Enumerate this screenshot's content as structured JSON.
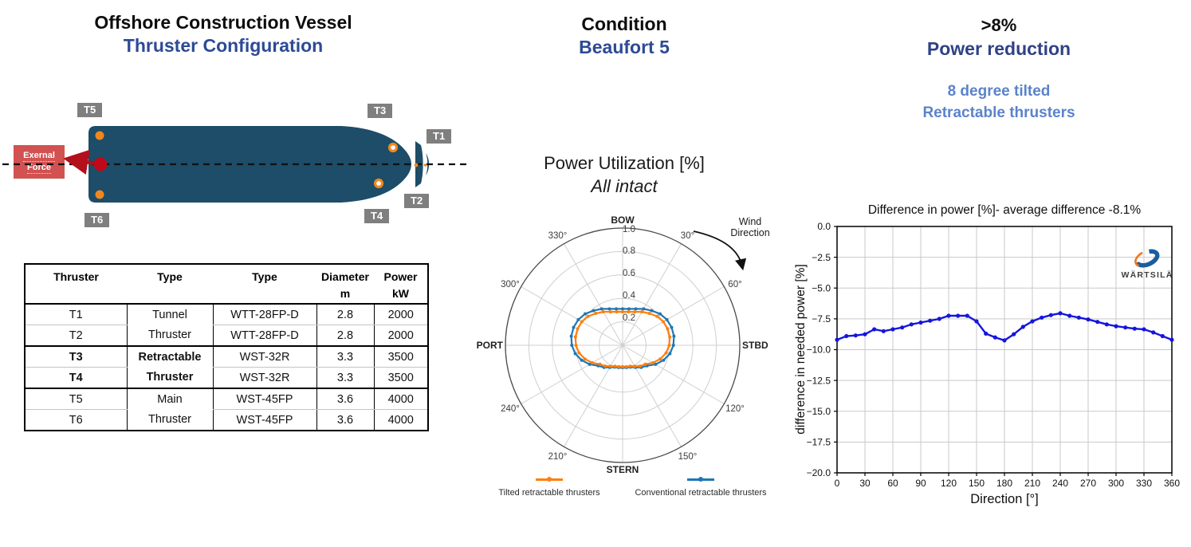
{
  "left": {
    "title_line1": "Offshore Construction Vessel",
    "title_line2": "Thruster Configuration",
    "diagram": {
      "external_force_line1": "Exernal",
      "external_force_line2": "Force",
      "thruster_labels": {
        "t1": "T1",
        "t2": "T2",
        "t3": "T3",
        "t4": "T4",
        "t5": "T5",
        "t6": "T6"
      },
      "hull_color": "#1d4d68",
      "label_bg": "#7f7f7f",
      "force_box_color": "#d25151",
      "arrow_color": "#b40f1c",
      "thruster_dot_color": "#f2871e"
    },
    "table": {
      "headers": [
        {
          "line1": "Thruster",
          "line2": ""
        },
        {
          "line1": "Type",
          "line2": ""
        },
        {
          "line1": "Type",
          "line2": ""
        },
        {
          "line1": "Diameter",
          "line2": "m"
        },
        {
          "line1": "Power",
          "line2": "kW"
        }
      ],
      "groups": [
        {
          "type_line1": "Tunnel",
          "type_line2": "Thruster",
          "rows": [
            {
              "id": "T1",
              "model": "WTT-28FP-D",
              "diameter": "2.8",
              "power": "2000"
            },
            {
              "id": "T2",
              "model": "WTT-28FP-D",
              "diameter": "2.8",
              "power": "2000"
            }
          ]
        },
        {
          "type_line1": "Retractable",
          "type_line2": "Thruster",
          "rows": [
            {
              "id": "T3",
              "model": "WST-32R",
              "diameter": "3.3",
              "power": "3500"
            },
            {
              "id": "T4",
              "model": "WST-32R",
              "diameter": "3.3",
              "power": "3500"
            }
          ]
        },
        {
          "type_line1": "Main",
          "type_line2": "Thruster",
          "rows": [
            {
              "id": "T5",
              "model": "WST-45FP",
              "diameter": "3.6",
              "power": "4000"
            },
            {
              "id": "T6",
              "model": "WST-45FP",
              "diameter": "3.6",
              "power": "4000"
            }
          ]
        }
      ]
    }
  },
  "middle": {
    "condition_label": "Condition",
    "condition_value": "Beaufort 5",
    "chart_title": "Power Utilization [%]",
    "chart_subtitle": "All intact",
    "legend": [
      {
        "label": "Tilted retractable thrusters",
        "color": "#ff7f0e"
      },
      {
        "label": "Conventional retractable thrusters",
        "color": "#1f77b4"
      }
    ]
  },
  "right": {
    "headline": ">8%",
    "subheadline": "Power reduction",
    "note_line1": "8 degree tilted",
    "note_line2": "Retractable thrusters"
  },
  "chart_data": [
    {
      "id": "power-utilization-polar",
      "type": "line",
      "coordinates": "polar",
      "title": "Power Utilization [%]",
      "subtitle": "All intact",
      "rlim": [
        0,
        1.0
      ],
      "r_ticks": [
        0.2,
        0.4,
        0.6,
        0.8,
        1.0
      ],
      "r_tick_labels": [
        "0.2",
        "0.4",
        "0.6",
        "0.8",
        "1.0"
      ],
      "angle_tick_labels": [
        "30°",
        "60°",
        "120°",
        "150°",
        "210°",
        "240°",
        "300°",
        "330°"
      ],
      "compass_labels": {
        "top": "BOW",
        "right": "STBD",
        "bottom": "STERN",
        "left": "PORT"
      },
      "annotation_line1": "Wind",
      "annotation_line2": "Direction",
      "angles": [
        0,
        10,
        20,
        30,
        40,
        50,
        60,
        70,
        80,
        90,
        100,
        110,
        120,
        130,
        140,
        150,
        160,
        170,
        180,
        190,
        200,
        210,
        220,
        230,
        240,
        250,
        260,
        270,
        280,
        290,
        300,
        310,
        320,
        330,
        340,
        350
      ],
      "series": [
        {
          "name": "Tilted retractable thrusters",
          "color": "#ff7f0e",
          "r": [
            0.285,
            0.29,
            0.303,
            0.33,
            0.355,
            0.384,
            0.402,
            0.409,
            0.409,
            0.398,
            0.377,
            0.342,
            0.299,
            0.252,
            0.232,
            0.207,
            0.19,
            0.186,
            0.183,
            0.186,
            0.19,
            0.207,
            0.232,
            0.252,
            0.299,
            0.342,
            0.377,
            0.398,
            0.409,
            0.409,
            0.402,
            0.384,
            0.355,
            0.33,
            0.303,
            0.29
          ]
        },
        {
          "name": "Conventional retractable thrusters",
          "color": "#1f77b4",
          "r": [
            0.31,
            0.315,
            0.33,
            0.358,
            0.385,
            0.417,
            0.437,
            0.445,
            0.445,
            0.433,
            0.41,
            0.372,
            0.325,
            0.272,
            0.247,
            0.218,
            0.198,
            0.193,
            0.19,
            0.193,
            0.198,
            0.218,
            0.247,
            0.272,
            0.325,
            0.372,
            0.41,
            0.433,
            0.445,
            0.445,
            0.437,
            0.417,
            0.385,
            0.358,
            0.33,
            0.315
          ]
        }
      ],
      "legend_position": "bottom"
    },
    {
      "id": "difference-in-power",
      "type": "line",
      "title": "Difference in power [%]- average difference -8.1%",
      "xlabel": "Direction [°]",
      "ylabel": "difference in needed power [%]",
      "xlim": [
        0,
        360
      ],
      "ylim": [
        -20,
        0
      ],
      "grid": true,
      "series_color": "#1515dd",
      "watermark": "WÄRTSILÄ",
      "xticks": [
        0,
        30,
        60,
        90,
        120,
        150,
        180,
        210,
        240,
        270,
        300,
        330,
        360
      ],
      "xtick_labels": [
        "0",
        "30",
        "60",
        "90",
        "120",
        "150",
        "180",
        "210",
        "240",
        "270",
        "300",
        "330",
        "360"
      ],
      "yticks": [
        0,
        -2.5,
        -5,
        -7.5,
        -10,
        -12.5,
        -15,
        -17.5,
        -20
      ],
      "ytick_labels": [
        "0.0",
        "−2.5",
        "−5.0",
        "−7.5",
        "−10.0",
        "−12.5",
        "−15.0",
        "−17.5",
        "−20.0"
      ],
      "x": [
        0,
        10,
        20,
        30,
        40,
        50,
        60,
        70,
        80,
        90,
        100,
        110,
        120,
        130,
        140,
        150,
        160,
        170,
        180,
        190,
        200,
        210,
        220,
        230,
        240,
        250,
        260,
        270,
        280,
        290,
        300,
        310,
        320,
        330,
        340,
        350,
        360
      ],
      "values": [
        -9.2,
        -8.9,
        -8.85,
        -8.75,
        -8.35,
        -8.5,
        -8.35,
        -8.2,
        -7.95,
        -7.8,
        -7.65,
        -7.5,
        -7.25,
        -7.25,
        -7.25,
        -7.7,
        -8.7,
        -9.0,
        -9.25,
        -8.75,
        -8.15,
        -7.7,
        -7.4,
        -7.2,
        -7.05,
        -7.25,
        -7.4,
        -7.55,
        -7.75,
        -7.95,
        -8.1,
        -8.2,
        -8.3,
        -8.35,
        -8.6,
        -8.9,
        -9.2
      ]
    }
  ]
}
